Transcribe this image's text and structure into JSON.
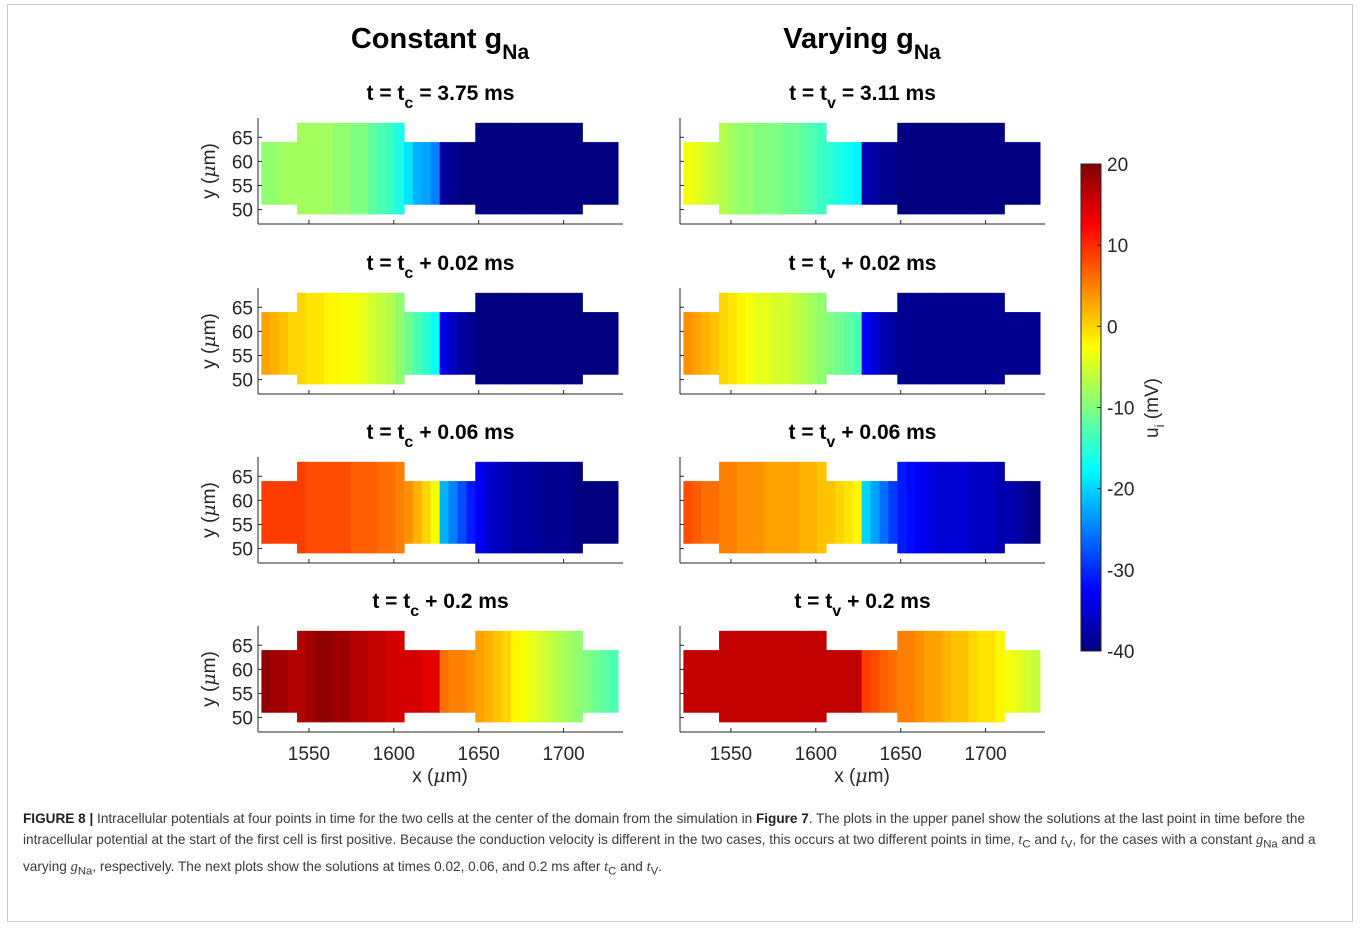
{
  "columns": [
    {
      "title": "Constant g",
      "title_sub": "Na"
    },
    {
      "title": "Varying g",
      "title_sub": "Na"
    }
  ],
  "panels": [
    [
      {
        "t_main": "t = t",
        "t_sub": "c",
        "t_rest": "= 3.75 ms",
        "cell1": [
          -9,
          -9,
          -8,
          -8,
          -8,
          -8,
          -8,
          -8,
          -9,
          -9,
          -10,
          -10,
          -12,
          -13,
          -14,
          -16,
          -19,
          -22,
          -23,
          -25
        ],
        "cell2": [
          -38,
          -39,
          -40,
          -40,
          -40,
          -40,
          -40,
          -40,
          -40,
          -40,
          -40,
          -40,
          -40,
          -40,
          -40,
          -40,
          -40,
          -40,
          -40,
          -40
        ]
      },
      {
        "t_main": "t = t",
        "t_sub": "c",
        "t_rest": "+ 0.02 ms",
        "cell1": [
          3,
          2,
          1,
          0,
          0,
          -1,
          -1,
          -2,
          -2,
          -3,
          -3,
          -4,
          -5,
          -6,
          -7,
          -9,
          -11,
          -13,
          -15,
          -17
        ],
        "cell2": [
          -34,
          -36,
          -38,
          -39,
          -40,
          -40,
          -40,
          -40,
          -40,
          -40,
          -40,
          -40,
          -40,
          -40,
          -40,
          -40,
          -40,
          -40,
          -40,
          -40
        ]
      },
      {
        "t_main": "t = t",
        "t_sub": "c",
        "t_rest": "+ 0.06 ms",
        "cell1": [
          9,
          9,
          9,
          9,
          9,
          8,
          8,
          8,
          8,
          8,
          7,
          7,
          7,
          6,
          6,
          5,
          4,
          2,
          0,
          -3
        ],
        "cell2": [
          -22,
          -25,
          -28,
          -31,
          -33,
          -35,
          -36,
          -37,
          -38,
          -38,
          -38,
          -39,
          -39,
          -39,
          -39,
          -40,
          -40,
          -40,
          -40,
          -40
        ]
      },
      {
        "t_main": "t = t",
        "t_sub": "c",
        "t_rest": "+ 0.2 ms",
        "cell1": [
          19,
          18,
          18,
          17,
          17,
          18,
          19,
          19,
          18,
          18,
          17,
          17,
          16,
          16,
          15,
          15,
          15,
          15,
          14,
          14
        ],
        "cell2": [
          6,
          5,
          5,
          4,
          3,
          2,
          1,
          0,
          -2,
          -3,
          -4,
          -5,
          -6,
          -7,
          -8,
          -9,
          -10,
          -11,
          -12,
          -13
        ]
      }
    ],
    [
      {
        "t_main": "t = t",
        "t_sub": "v",
        "t_rest": "= 3.11 ms",
        "cell1": [
          -3,
          -4,
          -5,
          -6,
          -7,
          -8,
          -9,
          -9,
          -10,
          -10,
          -10,
          -11,
          -11,
          -12,
          -13,
          -14,
          -15,
          -16,
          -17,
          -18
        ],
        "cell2": [
          -37,
          -38,
          -39,
          -39,
          -40,
          -40,
          -40,
          -40,
          -40,
          -40,
          -40,
          -40,
          -40,
          -40,
          -40,
          -40,
          -40,
          -40,
          -40,
          -40
        ]
      },
      {
        "t_main": "t = t",
        "t_sub": "v",
        "t_rest": "+ 0.02 ms",
        "cell1": [
          4,
          3,
          2,
          1,
          0,
          -1,
          -2,
          -3,
          -4,
          -4,
          -5,
          -5,
          -6,
          -7,
          -8,
          -9,
          -10,
          -11,
          -12,
          -13
        ],
        "cell2": [
          -33,
          -35,
          -37,
          -38,
          -39,
          -39,
          -39,
          -39,
          -39,
          -39,
          -39,
          -39,
          -39,
          -39,
          -39,
          -39,
          -39,
          -39,
          -39,
          -39
        ]
      },
      {
        "t_main": "t = t",
        "t_sub": "v",
        "t_rest": "+ 0.06 ms",
        "cell1": [
          8,
          7,
          6,
          6,
          5,
          5,
          4,
          4,
          4,
          3,
          3,
          3,
          3,
          2,
          2,
          1,
          1,
          0,
          -1,
          -2
        ],
        "cell2": [
          -20,
          -23,
          -26,
          -29,
          -31,
          -32,
          -33,
          -34,
          -35,
          -35,
          -35,
          -35,
          -36,
          -36,
          -36,
          -37,
          -37,
          -38,
          -39,
          -40
        ]
      },
      {
        "t_main": "t = t",
        "t_sub": "v",
        "t_rest": "+ 0.2 ms",
        "cell1": [
          16,
          16,
          16,
          16,
          16,
          16,
          16,
          16,
          16,
          16,
          16,
          16,
          16,
          16,
          16,
          16,
          16,
          16,
          16,
          16
        ],
        "cell2": [
          9,
          8,
          7,
          6,
          5,
          5,
          4,
          3,
          3,
          2,
          1,
          1,
          0,
          -1,
          -1,
          -2,
          -3,
          -4,
          -5,
          -6
        ]
      }
    ]
  ],
  "x_ticks": [
    1550,
    1600,
    1650,
    1700
  ],
  "y_ticks": [
    65,
    60,
    55,
    50
  ],
  "xlim": [
    1520,
    1735
  ],
  "ylim": [
    47,
    69
  ],
  "xlabel_pre": "x (",
  "xlabel_mu": "μ",
  "xlabel_post": "m)",
  "ylabel_pre": "y (",
  "ylabel_mu": "μ",
  "ylabel_post": "m)",
  "colorbar": {
    "ticks": [
      20,
      10,
      0,
      -10,
      -20,
      -30,
      -40
    ],
    "range": [
      -40,
      20
    ],
    "label_main": "u",
    "label_sub": "i",
    "label_rest": " (mV)"
  },
  "caption": {
    "label": "FIGURE 8 |",
    "text1": " Intracellular potentials at four points in time for the two cells at the center of the domain from the simulation in ",
    "ref": "Figure 7",
    "text2": ". The plots in the upper panel show the solutions at the last point in time before the intracellular potential at the start of the first cell is first positive. Because the conduction velocity is different in the two cases, this occurs at two different points in time, ",
    "tc": "t",
    "tc_sub": "C",
    "and1": " and ",
    "tv": "t",
    "tv_sub": "V",
    "text3": ", for the cases with a constant ",
    "g1": "g",
    "g1_sub": "Na",
    "text4": " and a varying ",
    "g2": "g",
    "g2_sub": "Na",
    "text5": ", respectively. The next plots show the solutions at times 0.02, 0.06, and 0.2 ms after ",
    "tc2": "t",
    "tc2_sub": "C",
    "and2": " and ",
    "tv2": "t",
    "tv2_sub": "V",
    "end": "."
  }
}
